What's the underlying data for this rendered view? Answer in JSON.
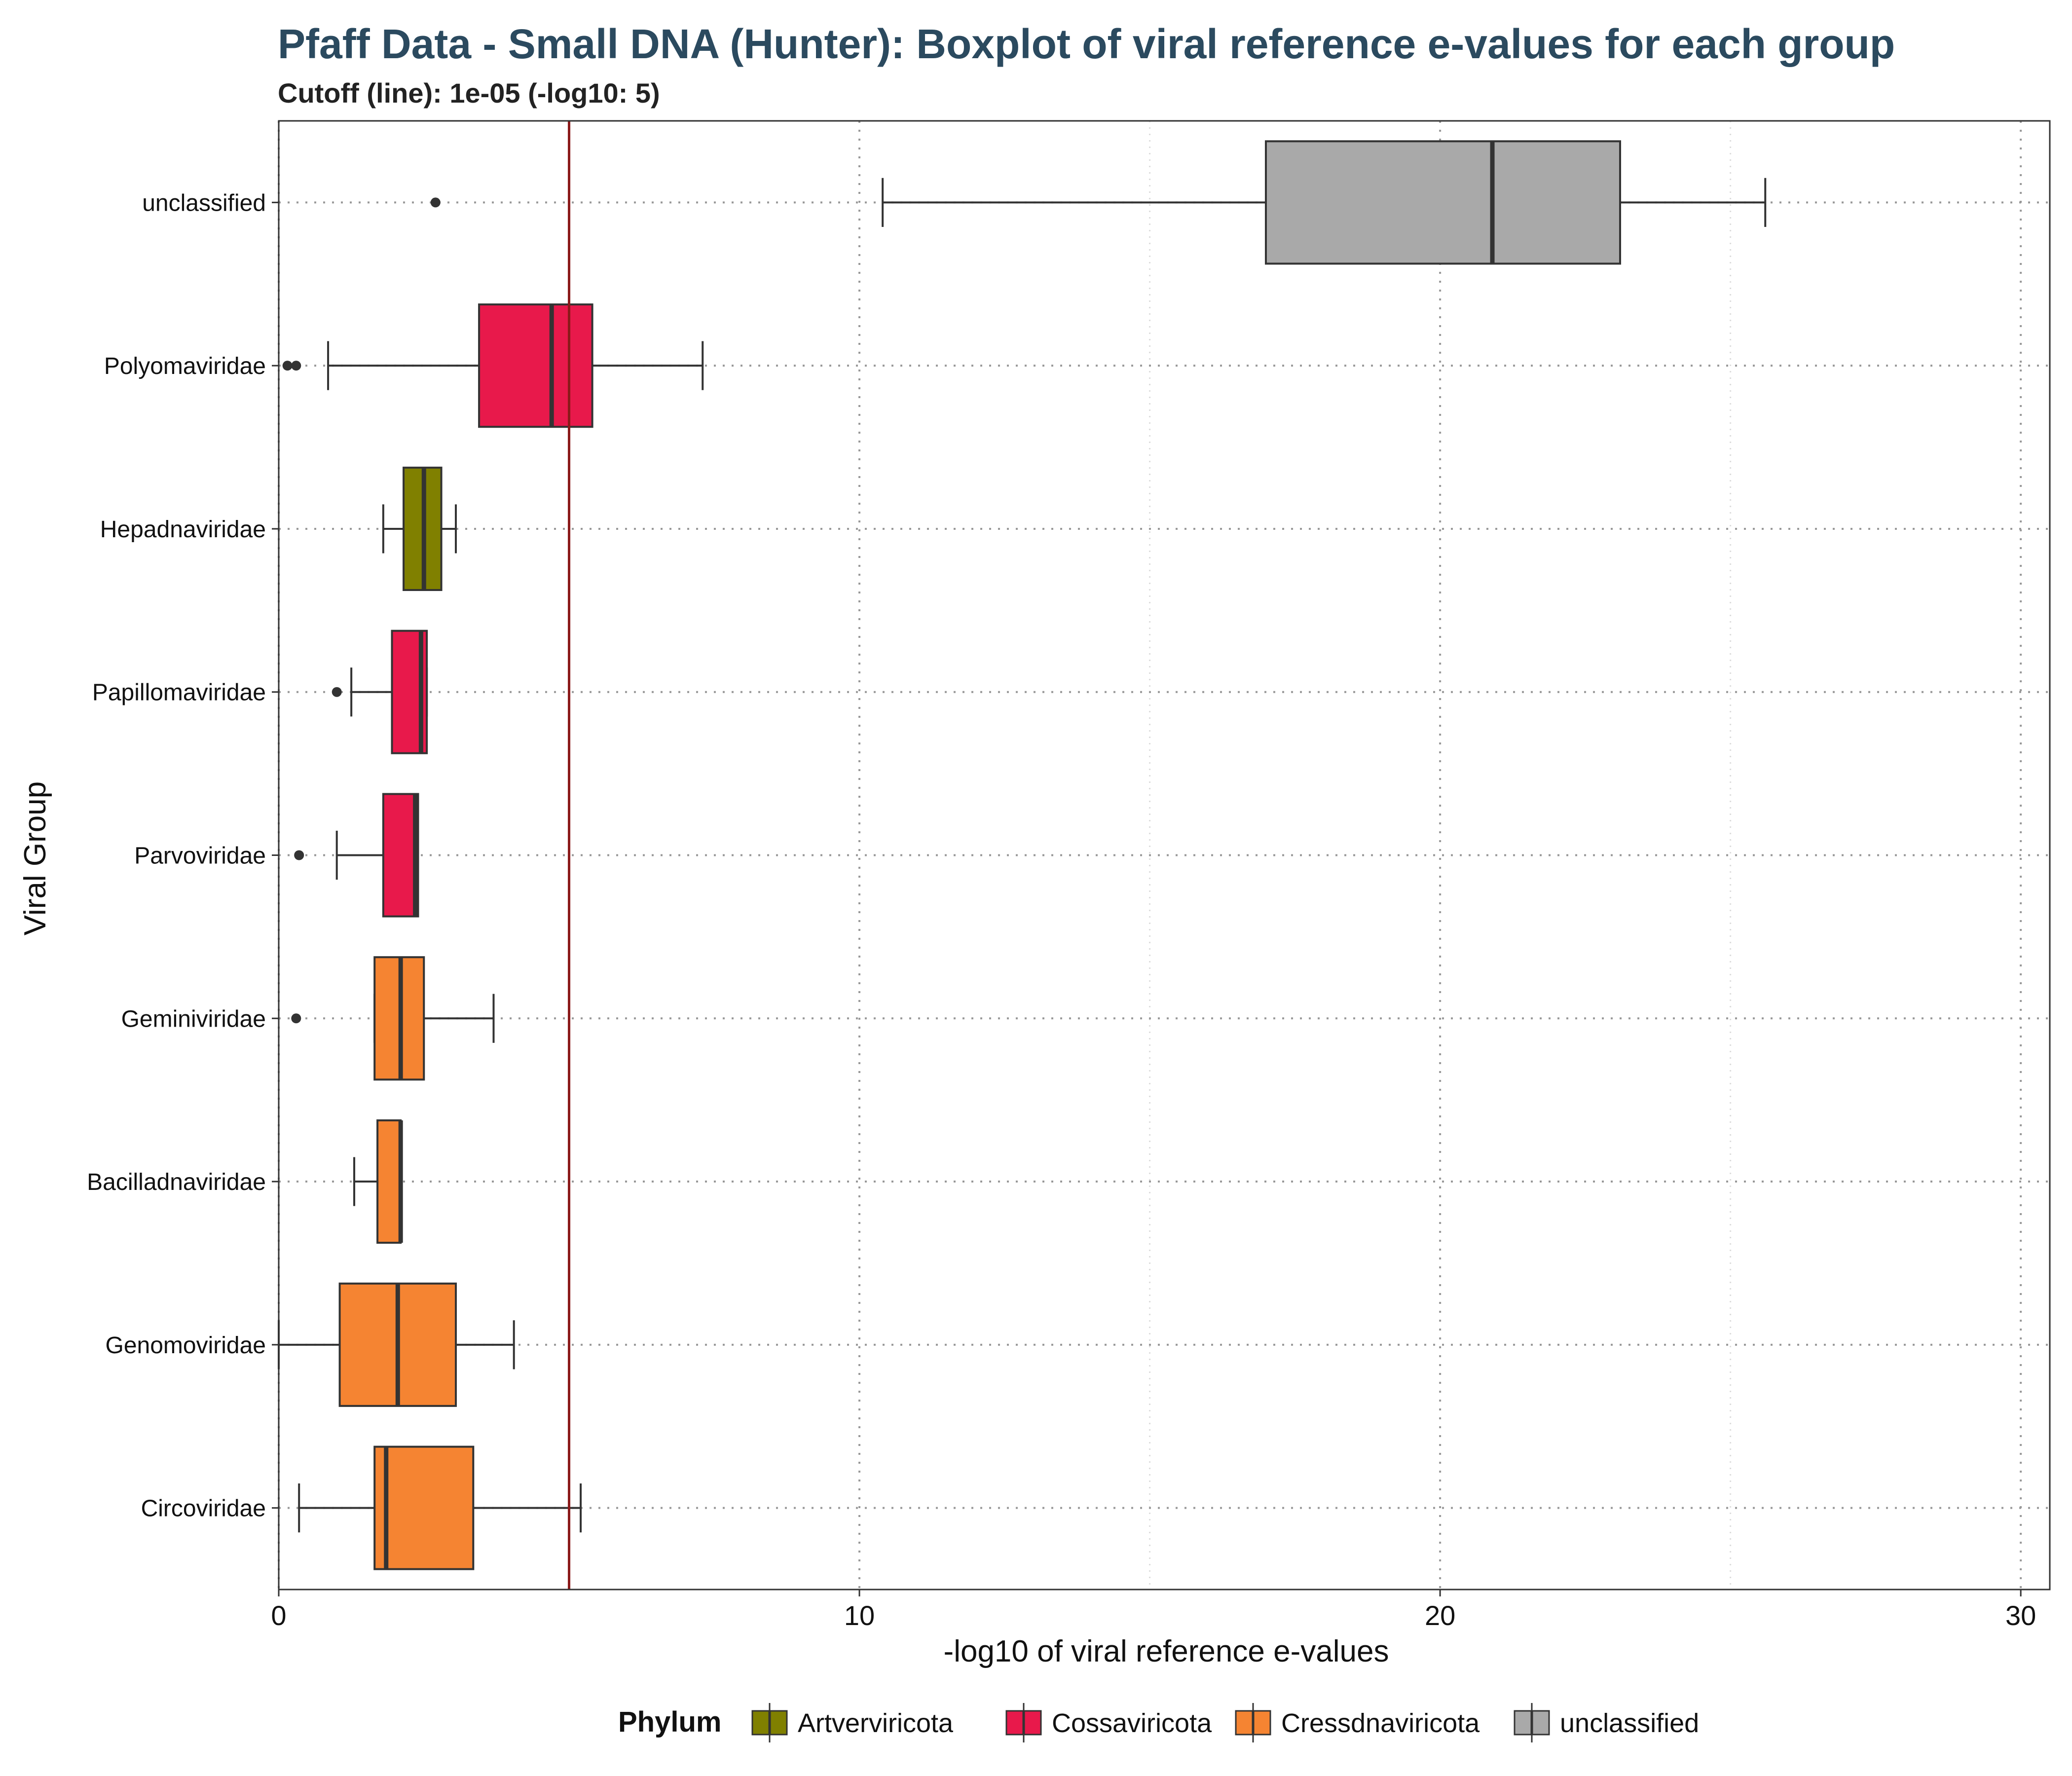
{
  "chart_data": {
    "type": "boxplot",
    "title": "Pfaff Data - Small DNA (Hunter): Boxplot of viral reference e-values for each group",
    "subtitle": "Cutoff (line): 1e-05 (-log10: 5)",
    "xlabel": "-log10 of viral reference e-values",
    "ylabel": "Viral Group",
    "xlim": [
      0,
      30.5
    ],
    "x_ticks": [
      0,
      10,
      20,
      30
    ],
    "x_tick_labels": [
      "0",
      "10",
      "20",
      "30"
    ],
    "cutoff": 5,
    "grid": true,
    "legend": {
      "title": "Phylum",
      "position": "bottom",
      "entries": [
        {
          "label": "Artverviricota",
          "color": "#808000"
        },
        {
          "label": "Cossaviricota",
          "color": "#E8194B"
        },
        {
          "label": "Cressdnaviricota",
          "color": "#F58432"
        },
        {
          "label": "unclassified",
          "color": "#A9A9A9"
        }
      ]
    },
    "groups": [
      {
        "name": "unclassified",
        "phylum": "unclassified",
        "color": "#A9A9A9",
        "whisker_low": 10.4,
        "q1": 17.0,
        "median": 20.9,
        "q3": 23.1,
        "whisker_high": 25.6,
        "outliers": [
          2.7
        ]
      },
      {
        "name": "Polyomaviridae",
        "phylum": "Cossaviricota",
        "color": "#E8194B",
        "whisker_low": 0.85,
        "q1": 3.45,
        "median": 4.7,
        "q3": 5.4,
        "whisker_high": 7.3,
        "outliers": [
          0.15,
          0.3
        ]
      },
      {
        "name": "Hepadnaviridae",
        "phylum": "Artverviricota",
        "color": "#808000",
        "whisker_low": 1.8,
        "q1": 2.15,
        "median": 2.5,
        "q3": 2.8,
        "whisker_high": 3.05,
        "outliers": []
      },
      {
        "name": "Papillomaviridae",
        "phylum": "Cossaviricota",
        "color": "#E8194B",
        "whisker_low": 1.25,
        "q1": 1.95,
        "median": 2.45,
        "q3": 2.55,
        "whisker_high": 2.55,
        "outliers": [
          1.0
        ]
      },
      {
        "name": "Parvoviridae",
        "phylum": "Cossaviricota",
        "color": "#E8194B",
        "whisker_low": 1.0,
        "q1": 1.8,
        "median": 2.35,
        "q3": 2.4,
        "whisker_high": 2.4,
        "outliers": [
          0.35
        ]
      },
      {
        "name": "Geminiviridae",
        "phylum": "Cressdnaviricota",
        "color": "#F58432",
        "whisker_low": 1.65,
        "q1": 1.65,
        "median": 2.1,
        "q3": 2.5,
        "whisker_high": 3.7,
        "outliers": [
          0.3
        ]
      },
      {
        "name": "Bacilladnaviridae",
        "phylum": "Cressdnaviricota",
        "color": "#F58432",
        "whisker_low": 1.3,
        "q1": 1.7,
        "median": 2.1,
        "q3": 2.1,
        "whisker_high": 2.1,
        "outliers": []
      },
      {
        "name": "Genomoviridae",
        "phylum": "Cressdnaviricota",
        "color": "#F58432",
        "whisker_low": 0.0,
        "q1": 1.05,
        "median": 2.05,
        "q3": 3.05,
        "whisker_high": 4.05,
        "outliers": []
      },
      {
        "name": "Circoviridae",
        "phylum": "Cressdnaviricota",
        "color": "#F58432",
        "whisker_low": 0.35,
        "q1": 1.65,
        "median": 1.85,
        "q3": 3.35,
        "whisker_high": 5.2,
        "outliers": []
      }
    ]
  },
  "colors": {
    "title": "#2B4A5F",
    "cutoff_line": "#8B1A1A",
    "box_outline": "#333333",
    "grid_major": "#999999",
    "grid_minor": "#dddddd"
  }
}
